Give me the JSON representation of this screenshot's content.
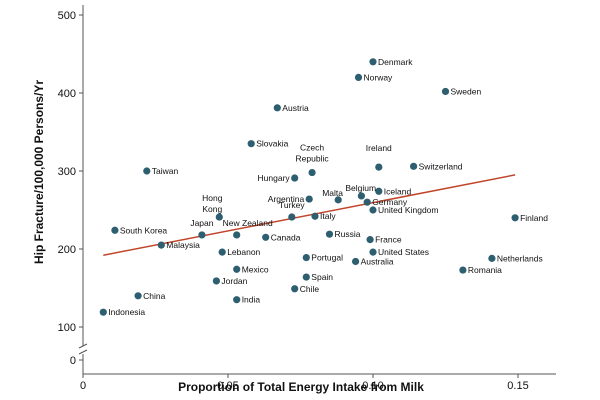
{
  "chart_data": {
    "type": "scatter",
    "xlabel": "Proportion of Total Energy Intake from Milk",
    "ylabel": "Hip Fracture/100,000 Persons/Yr",
    "xlim": [
      0,
      0.16
    ],
    "ylim": [
      0,
      500
    ],
    "y_axis_break": "between 0 and 100",
    "x_ticks": [
      "0",
      "0.05",
      "0.10",
      "0.15"
    ],
    "x_tick_values": [
      0,
      0.05,
      0.1,
      0.15
    ],
    "y_ticks": [
      "0",
      "100",
      "200",
      "300",
      "400",
      "500"
    ],
    "y_tick_values": [
      0,
      100,
      200,
      300,
      400,
      500
    ],
    "grid": "off",
    "marker_color": "#2d5f70",
    "trendline_color": "#c0452b",
    "trendline": {
      "x": [
        0.007,
        0.149
      ],
      "y": [
        192,
        295
      ]
    },
    "points": [
      {
        "label": "Denmark",
        "x": 0.1,
        "y": 440
      },
      {
        "label": "Norway",
        "x": 0.095,
        "y": 420
      },
      {
        "label": "Sweden",
        "x": 0.125,
        "y": 402
      },
      {
        "label": "Austria",
        "x": 0.067,
        "y": 381
      },
      {
        "label": "Slovakia",
        "x": 0.058,
        "y": 335
      },
      {
        "label": "Ireland",
        "x": 0.102,
        "y": 305
      },
      {
        "label": "Switzerland",
        "x": 0.114,
        "y": 306
      },
      {
        "label": "Czech Republic",
        "x": 0.079,
        "y": 298
      },
      {
        "label": "Taiwan",
        "x": 0.022,
        "y": 300
      },
      {
        "label": "Hungary",
        "x": 0.073,
        "y": 291
      },
      {
        "label": "Belgium",
        "x": 0.096,
        "y": 268
      },
      {
        "label": "Iceland",
        "x": 0.102,
        "y": 274
      },
      {
        "label": "Malta",
        "x": 0.088,
        "y": 263
      },
      {
        "label": "Germany",
        "x": 0.098,
        "y": 260
      },
      {
        "label": "Argentina",
        "x": 0.078,
        "y": 264
      },
      {
        "label": "United Kingdom",
        "x": 0.1,
        "y": 250
      },
      {
        "label": "Finland",
        "x": 0.149,
        "y": 240
      },
      {
        "label": "Hong Kong",
        "x": 0.047,
        "y": 241
      },
      {
        "label": "Turkey",
        "x": 0.072,
        "y": 241
      },
      {
        "label": "Italy",
        "x": 0.08,
        "y": 242
      },
      {
        "label": "South Korea",
        "x": 0.011,
        "y": 224
      },
      {
        "label": "New Zealand",
        "x": 0.053,
        "y": 218
      },
      {
        "label": "Japan",
        "x": 0.041,
        "y": 218
      },
      {
        "label": "Russia",
        "x": 0.085,
        "y": 219
      },
      {
        "label": "Canada",
        "x": 0.063,
        "y": 215
      },
      {
        "label": "France",
        "x": 0.099,
        "y": 212
      },
      {
        "label": "Malaysia",
        "x": 0.027,
        "y": 205
      },
      {
        "label": "Lebanon",
        "x": 0.048,
        "y": 196
      },
      {
        "label": "United States",
        "x": 0.1,
        "y": 196
      },
      {
        "label": "Portugal",
        "x": 0.077,
        "y": 189
      },
      {
        "label": "Australia",
        "x": 0.094,
        "y": 184
      },
      {
        "label": "Netherlands",
        "x": 0.141,
        "y": 188
      },
      {
        "label": "Mexico",
        "x": 0.053,
        "y": 174
      },
      {
        "label": "Romania",
        "x": 0.131,
        "y": 173
      },
      {
        "label": "Spain",
        "x": 0.077,
        "y": 164
      },
      {
        "label": "Jordan",
        "x": 0.046,
        "y": 159
      },
      {
        "label": "Chile",
        "x": 0.073,
        "y": 149
      },
      {
        "label": "China",
        "x": 0.019,
        "y": 140
      },
      {
        "label": "India",
        "x": 0.053,
        "y": 135
      },
      {
        "label": "Indonesia",
        "x": 0.007,
        "y": 119
      }
    ]
  }
}
